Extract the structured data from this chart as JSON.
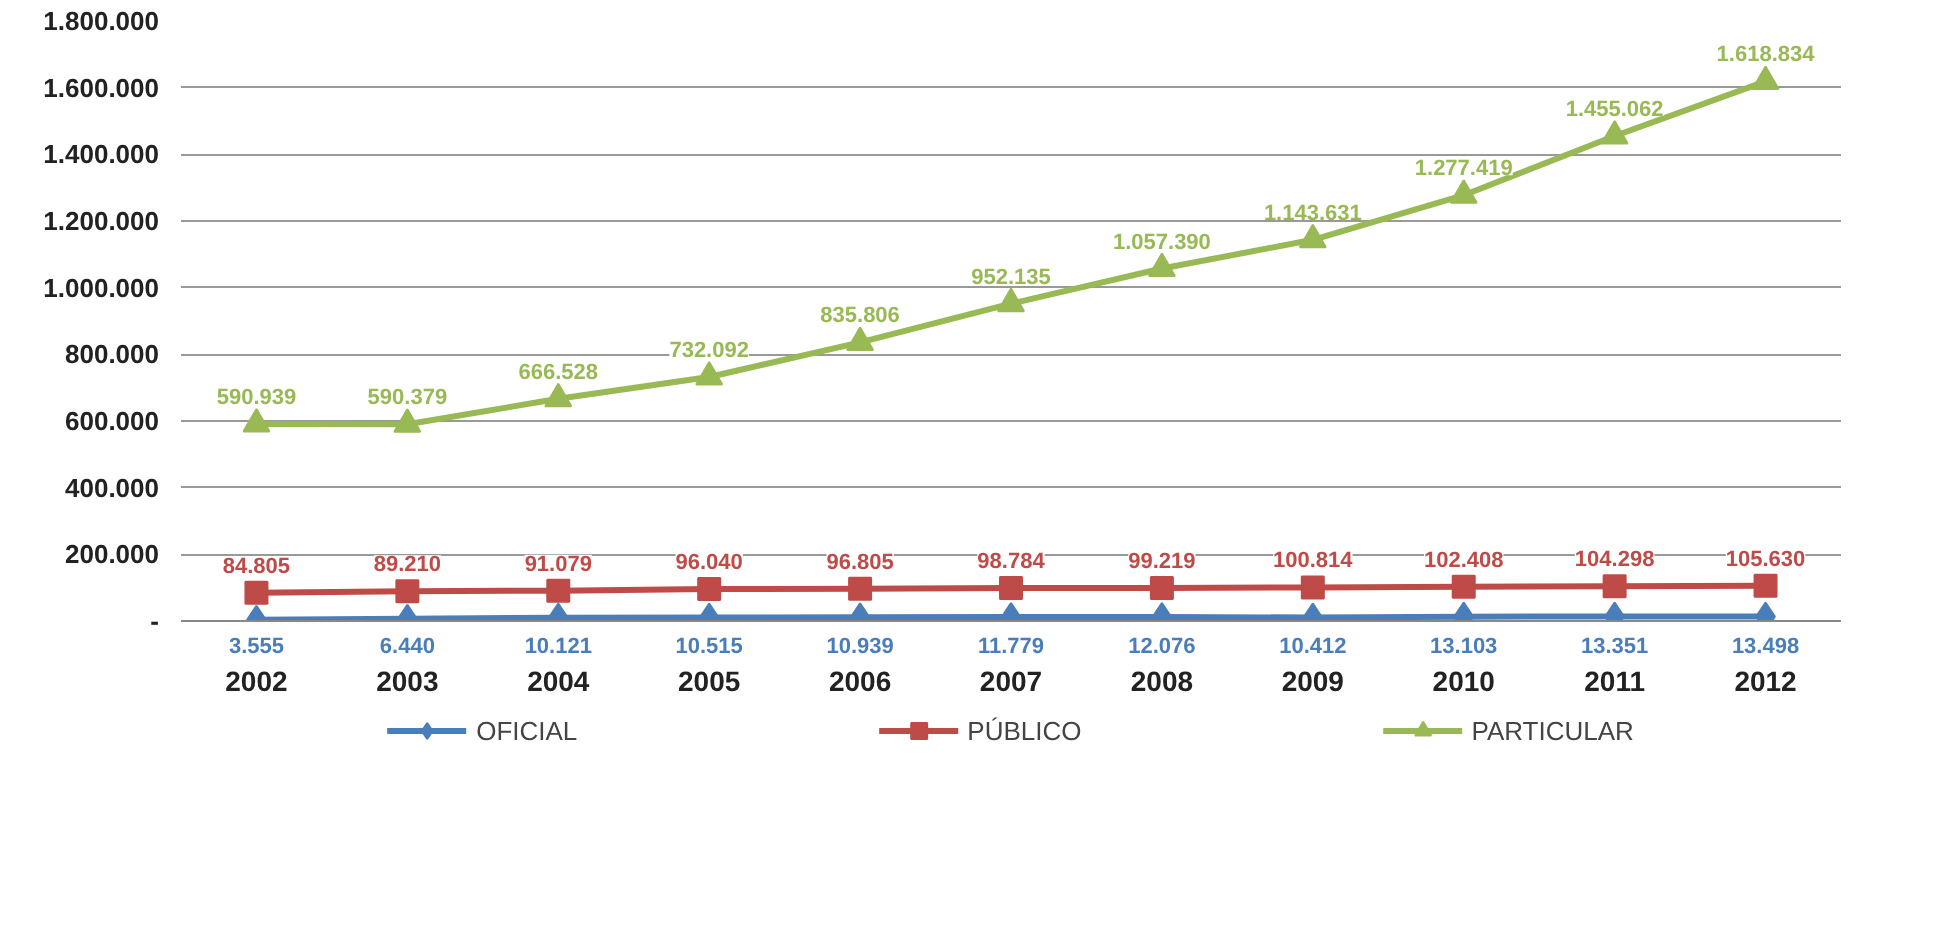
{
  "chart_data": {
    "type": "line",
    "categories": [
      "2002",
      "2003",
      "2004",
      "2005",
      "2006",
      "2007",
      "2008",
      "2009",
      "2010",
      "2011",
      "2012"
    ],
    "ylim": [
      0,
      1800000
    ],
    "yticks": [
      {
        "value": 0,
        "label": "-"
      },
      {
        "value": 200000,
        "label": "200.000"
      },
      {
        "value": 400000,
        "label": "400.000"
      },
      {
        "value": 600000,
        "label": "600.000"
      },
      {
        "value": 800000,
        "label": "800.000"
      },
      {
        "value": 1000000,
        "label": "1.000.000"
      },
      {
        "value": 1200000,
        "label": "1.200.000"
      },
      {
        "value": 1400000,
        "label": "1.400.000"
      },
      {
        "value": 1600000,
        "label": "1.600.000"
      },
      {
        "value": 1800000,
        "label": "1.800.000"
      }
    ],
    "grid": "y",
    "legend": "bottom",
    "line_style": "solid",
    "series": [
      {
        "name": "OFICIAL",
        "color": "#4a7ebb",
        "marker": "diamond",
        "values": [
          3555,
          6440,
          10121,
          10515,
          10939,
          11779,
          12076,
          10412,
          13103,
          13351,
          13498
        ],
        "value_labels": [
          "3.555",
          "6.440",
          "10.121",
          "10.515",
          "10.939",
          "11.779",
          "12.076",
          "10.412",
          "13.103",
          "13.351",
          "13.498"
        ]
      },
      {
        "name": "PÚBLICO",
        "color": "#be4b48",
        "marker": "square",
        "values": [
          84805,
          89210,
          91079,
          96040,
          96805,
          98784,
          99219,
          100814,
          102408,
          104298,
          105630
        ],
        "value_labels": [
          "84.805",
          "89.210",
          "91.079",
          "96.040",
          "96.805",
          "98.784",
          "99.219",
          "100.814",
          "102.408",
          "104.298",
          "105.630"
        ]
      },
      {
        "name": "PARTICULAR",
        "color": "#98b954",
        "marker": "triangle",
        "values": [
          590939,
          590379,
          666528,
          732092,
          835806,
          952135,
          1057390,
          1143631,
          1277419,
          1455062,
          1618834
        ],
        "value_labels": [
          "590.939",
          "590.379",
          "666.528",
          "732.092",
          "835.806",
          "952.135",
          "1.057.390",
          "1.143.631",
          "1.277.419",
          "1.455.062",
          "1.618.834"
        ]
      }
    ]
  }
}
